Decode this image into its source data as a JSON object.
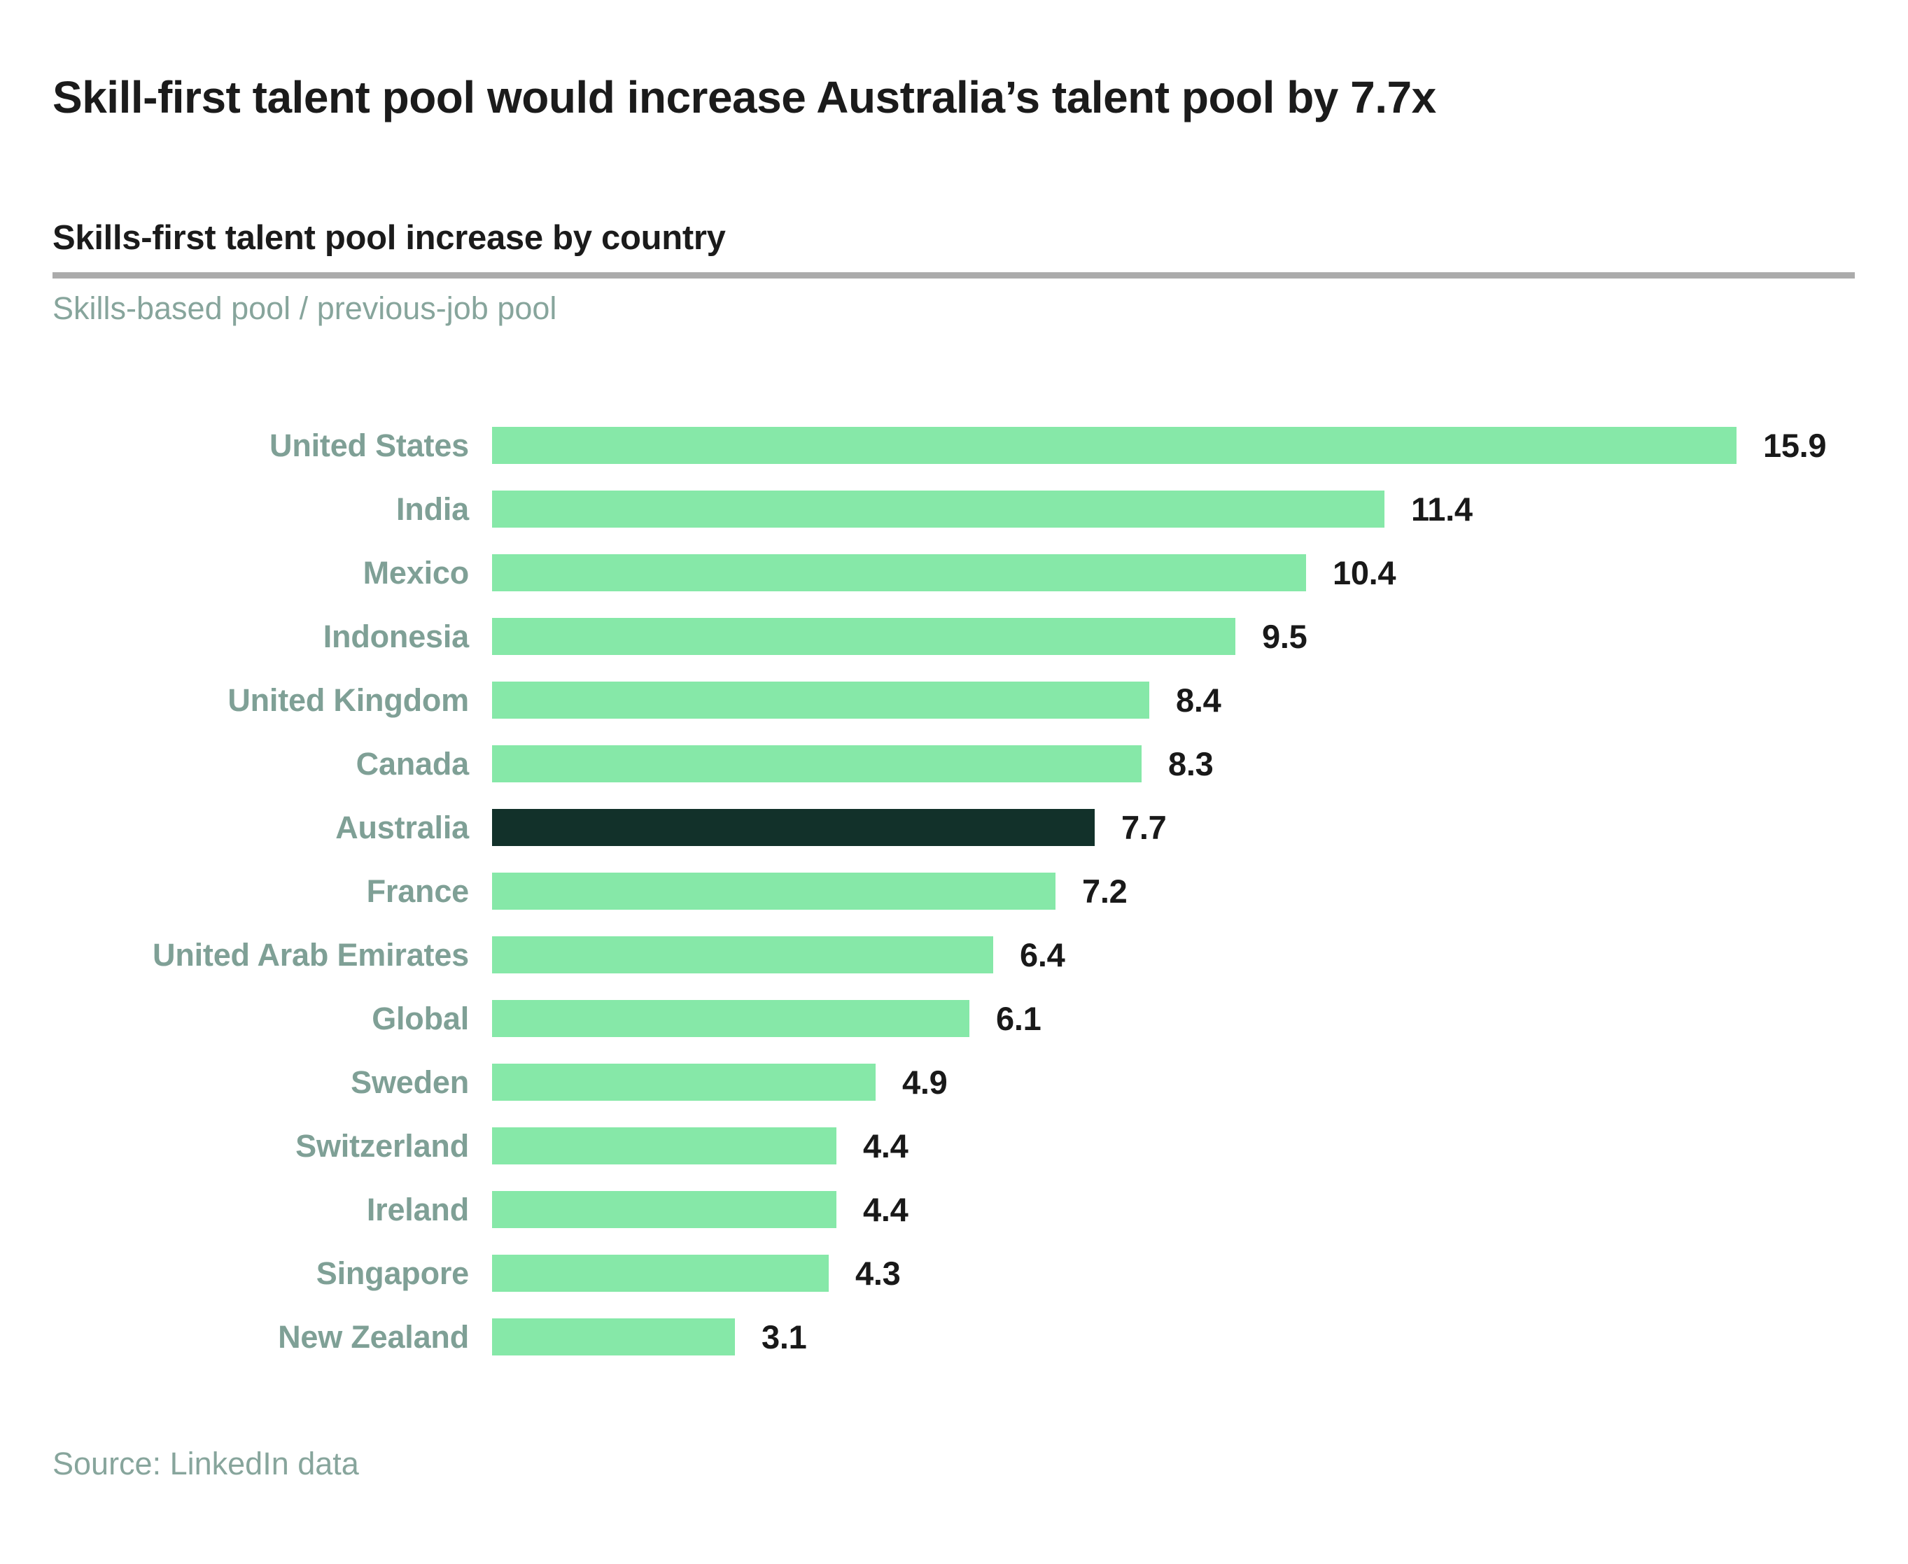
{
  "page": {
    "title": "Skill-first talent pool would increase Australia’s talent pool by 7.7x",
    "source": "Source: LinkedIn data"
  },
  "chart_data": {
    "type": "bar",
    "orientation": "horizontal",
    "title": "Skills-first talent pool increase by country",
    "subtitle": "Skills-based pool / previous-job pool",
    "categories": [
      "United States",
      "India",
      "Mexico",
      "Indonesia",
      "United Kingdom",
      "Canada",
      "Australia",
      "France",
      "United Arab Emirates",
      "Global",
      "Sweden",
      "Switzerland",
      "Ireland",
      "Singapore",
      "New Zealand"
    ],
    "values": [
      15.9,
      11.4,
      10.4,
      9.5,
      8.4,
      8.3,
      7.7,
      7.2,
      6.4,
      6.1,
      4.9,
      4.4,
      4.4,
      4.3,
      3.1
    ],
    "value_labels": [
      "15.9",
      "11.4",
      "10.4",
      "9.5",
      "8.4",
      "8.3",
      "7.7",
      "7.2",
      "6.4",
      "6.1",
      "4.9",
      "4.4",
      "4.4",
      "4.3",
      "3.1"
    ],
    "highlight_category": "Australia",
    "xlim": [
      0,
      16.5
    ],
    "grid": false,
    "legend_position": "none",
    "colors": {
      "bar": "#86e8a8",
      "bar_highlight": "#12312a",
      "label": "#7fa096",
      "muted": "#87a59c",
      "value": "#191919",
      "title": "#1b1b1b",
      "rule": "#ababab"
    }
  }
}
